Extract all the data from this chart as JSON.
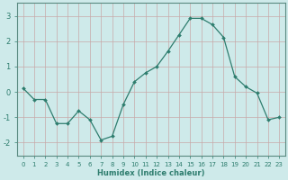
{
  "x": [
    0,
    1,
    2,
    3,
    4,
    5,
    6,
    7,
    8,
    9,
    10,
    11,
    12,
    13,
    14,
    15,
    16,
    17,
    18,
    19,
    20,
    21,
    22,
    23
  ],
  "y": [
    0.15,
    -0.3,
    -0.3,
    -1.25,
    -1.25,
    -0.75,
    -1.1,
    -1.9,
    -1.75,
    -0.5,
    0.4,
    0.75,
    1.0,
    1.6,
    2.25,
    2.9,
    2.9,
    2.65,
    2.15,
    0.6,
    0.2,
    -0.05,
    -1.1,
    -1.0
  ],
  "line_color": "#2e7d6e",
  "marker": "D",
  "marker_size": 2.0,
  "bg_color": "#ceeaea",
  "grid_color": "#c8a8a8",
  "title": "",
  "xlabel": "Humidex (Indice chaleur)",
  "ylabel": "",
  "xlim": [
    -0.5,
    23.5
  ],
  "ylim": [
    -2.5,
    3.5
  ],
  "yticks": [
    -2,
    -1,
    0,
    1,
    2,
    3
  ],
  "xticks": [
    0,
    1,
    2,
    3,
    4,
    5,
    6,
    7,
    8,
    9,
    10,
    11,
    12,
    13,
    14,
    15,
    16,
    17,
    18,
    19,
    20,
    21,
    22,
    23
  ],
  "tick_color": "#2e7d6e",
  "label_color": "#2e7d6e",
  "spine_color": "#5a8a80",
  "linewidth": 0.9,
  "xlabel_fontsize": 6.0,
  "xlabel_fontweight": "bold",
  "ytick_fontsize": 6.0,
  "xtick_fontsize": 5.0
}
